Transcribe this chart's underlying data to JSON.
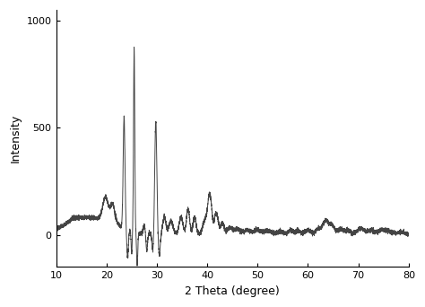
{
  "xlabel": "2 Theta (degree)",
  "ylabel": "Intensity",
  "xlim": [
    10,
    80
  ],
  "ylim": [
    -150,
    1050
  ],
  "xticks": [
    10,
    20,
    30,
    40,
    50,
    60,
    70,
    80
  ],
  "yticks": [
    0,
    500,
    1000
  ],
  "line_color": "#444444",
  "line_width": 0.7,
  "background_color": "#ffffff",
  "figsize": [
    4.74,
    3.42
  ],
  "dpi": 100
}
